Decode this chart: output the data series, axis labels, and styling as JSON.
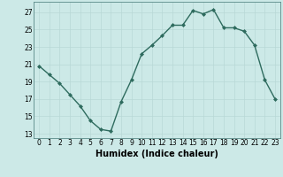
{
  "x": [
    0,
    1,
    2,
    3,
    4,
    5,
    6,
    7,
    8,
    9,
    10,
    11,
    12,
    13,
    14,
    15,
    16,
    17,
    18,
    19,
    20,
    21,
    22,
    23
  ],
  "y": [
    20.8,
    19.8,
    18.8,
    17.5,
    16.2,
    14.5,
    13.5,
    13.3,
    16.7,
    19.2,
    22.2,
    23.2,
    24.3,
    25.5,
    25.5,
    27.2,
    26.8,
    27.3,
    25.2,
    25.2,
    24.8,
    23.2,
    19.2,
    17.0
  ],
  "line_color": "#2e6b5e",
  "marker": "D",
  "markersize": 2.0,
  "linewidth": 1.0,
  "background_color": "#cce9e7",
  "grid_color": "#b8d8d6",
  "xlabel": "Humidex (Indice chaleur)",
  "xlabel_fontsize": 7,
  "yticks": [
    13,
    15,
    17,
    19,
    21,
    23,
    25,
    27
  ],
  "xticks": [
    0,
    1,
    2,
    3,
    4,
    5,
    6,
    7,
    8,
    9,
    10,
    11,
    12,
    13,
    14,
    15,
    16,
    17,
    18,
    19,
    20,
    21,
    22,
    23
  ],
  "ylim": [
    12.5,
    28.2
  ],
  "xlim": [
    -0.5,
    23.5
  ],
  "tick_fontsize": 5.5
}
